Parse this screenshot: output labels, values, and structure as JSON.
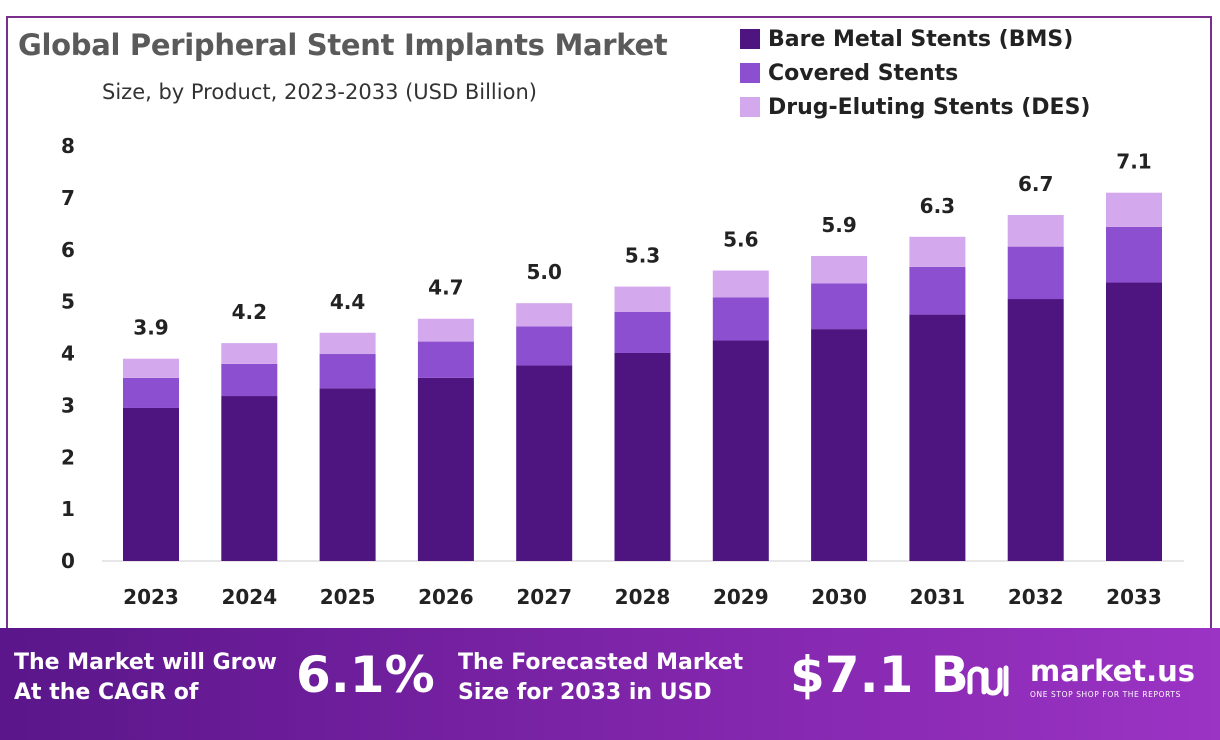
{
  "header": {
    "title": "Global Peripheral Stent Implants Market",
    "subtitle": "Size, by Product, 2023-2033 (USD Billion)"
  },
  "legend": [
    {
      "label": "Bare Metal Stents (BMS)",
      "color": "#4e1580"
    },
    {
      "label": "Covered Stents",
      "color": "#8b4fd0"
    },
    {
      "label": "Drug-Eluting Stents (DES)",
      "color": "#d3a8ec"
    }
  ],
  "chart_data": {
    "type": "bar",
    "stacked": true,
    "categories": [
      "2023",
      "2024",
      "2025",
      "2026",
      "2027",
      "2028",
      "2029",
      "2030",
      "2031",
      "2032",
      "2033"
    ],
    "series": [
      {
        "name": "Bare Metal Stents (BMS)",
        "color": "#4e1580",
        "values": [
          2.95,
          3.18,
          3.33,
          3.53,
          3.77,
          4.01,
          4.25,
          4.47,
          4.75,
          5.05,
          5.37
        ]
      },
      {
        "name": "Covered Stents",
        "color": "#8b4fd0",
        "values": [
          0.58,
          0.62,
          0.66,
          0.7,
          0.75,
          0.79,
          0.83,
          0.88,
          0.92,
          1.01,
          1.07
        ]
      },
      {
        "name": "Drug-Eluting Stents (DES)",
        "color": "#d3a8ec",
        "values": [
          0.37,
          0.4,
          0.41,
          0.44,
          0.45,
          0.49,
          0.52,
          0.53,
          0.58,
          0.61,
          0.66
        ]
      }
    ],
    "totals_labels": [
      "3.9",
      "4.2",
      "4.4",
      "4.7",
      "5.0",
      "5.3",
      "5.6",
      "5.9",
      "6.3",
      "6.7",
      "7.1"
    ],
    "y_ticks": [
      "0",
      "1",
      "2",
      "3",
      "4",
      "5",
      "6",
      "7",
      "8"
    ],
    "ylim": [
      0,
      8
    ],
    "grid": false
  },
  "banner": {
    "cagr_text_1": "The Market will Grow",
    "cagr_text_2": "At the CAGR of",
    "cagr_value": "6.1%",
    "forecast_text_1": "The Forecasted Market",
    "forecast_text_2": "Size for 2033 in USD",
    "forecast_value": "$7.1 B",
    "brand": "market.us",
    "tagline": "ONE STOP SHOP FOR THE REPORTS"
  }
}
